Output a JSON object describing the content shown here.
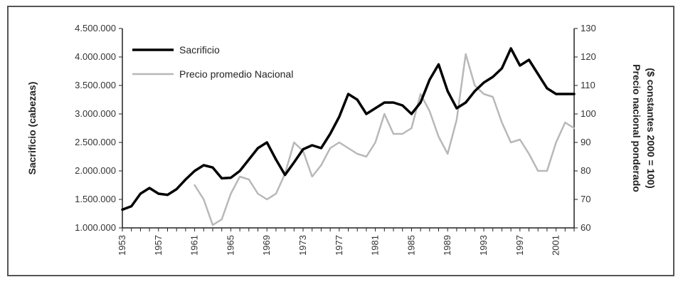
{
  "chart_data": {
    "type": "line",
    "x": [
      1953,
      1954,
      1955,
      1956,
      1957,
      1958,
      1959,
      1960,
      1961,
      1962,
      1963,
      1964,
      1965,
      1966,
      1967,
      1968,
      1969,
      1970,
      1971,
      1972,
      1973,
      1974,
      1975,
      1976,
      1977,
      1978,
      1979,
      1980,
      1981,
      1982,
      1983,
      1984,
      1985,
      1986,
      1987,
      1988,
      1989,
      1990,
      1991,
      1992,
      1993,
      1994,
      1995,
      1996,
      1997,
      1998,
      1999,
      2000,
      2001,
      2002,
      2003
    ],
    "x_tick_labels": [
      "1953",
      "1957",
      "1961",
      "1965",
      "1969",
      "1973",
      "1977",
      "1981",
      "1985",
      "1989",
      "1993",
      "1997",
      "2001"
    ],
    "x_tick_values": [
      1953,
      1957,
      1961,
      1965,
      1969,
      1973,
      1977,
      1981,
      1985,
      1989,
      1993,
      1997,
      2001
    ],
    "y_left": {
      "label": "Sacrificio (cabezas)",
      "lim": [
        1000000,
        4500000
      ],
      "ticks": [
        "1.000.000",
        "1.500.000",
        "2.000.000",
        "2.500.000",
        "3.000.000",
        "3.500.000",
        "4.000.000",
        "4.500.000"
      ],
      "tick_values": [
        1000000,
        1500000,
        2000000,
        2500000,
        3000000,
        3500000,
        4000000,
        4500000
      ]
    },
    "y_right": {
      "label_line1": "Precio nacional ponderado",
      "label_line2": "($ constantes 2000 = 100)",
      "lim": [
        60,
        130
      ],
      "ticks": [
        "60",
        "70",
        "80",
        "90",
        "100",
        "110",
        "120",
        "130"
      ],
      "tick_values": [
        60,
        70,
        80,
        90,
        100,
        110,
        120,
        130
      ]
    },
    "legend_position": "top-left",
    "series": [
      {
        "name": "Sacrificio",
        "axis": "left",
        "color": "#000000",
        "values": [
          1320000,
          1380000,
          1600000,
          1700000,
          1600000,
          1580000,
          1680000,
          1850000,
          2000000,
          2100000,
          2060000,
          1870000,
          1880000,
          2000000,
          2200000,
          2400000,
          2500000,
          2200000,
          1930000,
          2150000,
          2380000,
          2450000,
          2400000,
          2650000,
          2950000,
          3350000,
          3250000,
          3000000,
          3100000,
          3200000,
          3200000,
          3150000,
          3000000,
          3200000,
          3600000,
          3870000,
          3400000,
          3100000,
          3200000,
          3400000,
          3550000,
          3650000,
          3800000,
          4150000,
          3850000,
          3950000,
          3700000,
          3450000,
          3350000,
          3350000,
          3350000
        ]
      },
      {
        "name": "Precio promedio Nacional",
        "axis": "right",
        "color": "#b8b8b8",
        "values": [
          null,
          null,
          null,
          null,
          null,
          null,
          null,
          null,
          75,
          70,
          61,
          63,
          72,
          78,
          77,
          72,
          70,
          72,
          79,
          90,
          87,
          78,
          82,
          88,
          90,
          88,
          86,
          85,
          90,
          100,
          93,
          93,
          95,
          107,
          101,
          92,
          86,
          98,
          121,
          110,
          107,
          106,
          97,
          90,
          91,
          86,
          80,
          80,
          90,
          97,
          95
        ]
      }
    ]
  }
}
